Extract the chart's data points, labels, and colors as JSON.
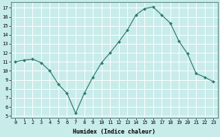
{
  "x": [
    0,
    1,
    2,
    3,
    4,
    5,
    6,
    7,
    8,
    9,
    10,
    11,
    12,
    13,
    14,
    15,
    16,
    17,
    18,
    19,
    20,
    21,
    22,
    23
  ],
  "y": [
    11.0,
    11.2,
    11.3,
    10.9,
    10.0,
    8.5,
    7.5,
    5.3,
    7.5,
    9.3,
    10.9,
    12.0,
    13.2,
    14.5,
    16.2,
    16.9,
    17.1,
    16.2,
    15.3,
    13.3,
    11.9,
    9.7,
    9.3,
    8.8
  ],
  "xlabel": "Humidex (Indice chaleur)",
  "ylim": [
    4.8,
    17.6
  ],
  "xlim": [
    -0.5,
    23.5
  ],
  "yticks": [
    5,
    6,
    7,
    8,
    9,
    10,
    11,
    12,
    13,
    14,
    15,
    16,
    17
  ],
  "xticks": [
    0,
    1,
    2,
    3,
    4,
    5,
    6,
    7,
    8,
    9,
    10,
    11,
    12,
    13,
    14,
    15,
    16,
    17,
    18,
    19,
    20,
    21,
    22,
    23
  ],
  "xtick_labels": [
    "0",
    "1",
    "2",
    "3",
    "4",
    "5",
    "6",
    "7",
    "8",
    "9",
    "10",
    "11",
    "12",
    "13",
    "14",
    "15",
    "16",
    "17",
    "18",
    "19",
    "20",
    "21",
    "22",
    "23"
  ],
  "line_color": "#2e7d6e",
  "marker": "D",
  "marker_size": 2,
  "bg_color": "#c8ecea",
  "grid_color": "#ffffff",
  "xlabel_fontsize": 6,
  "tick_fontsize": 5
}
